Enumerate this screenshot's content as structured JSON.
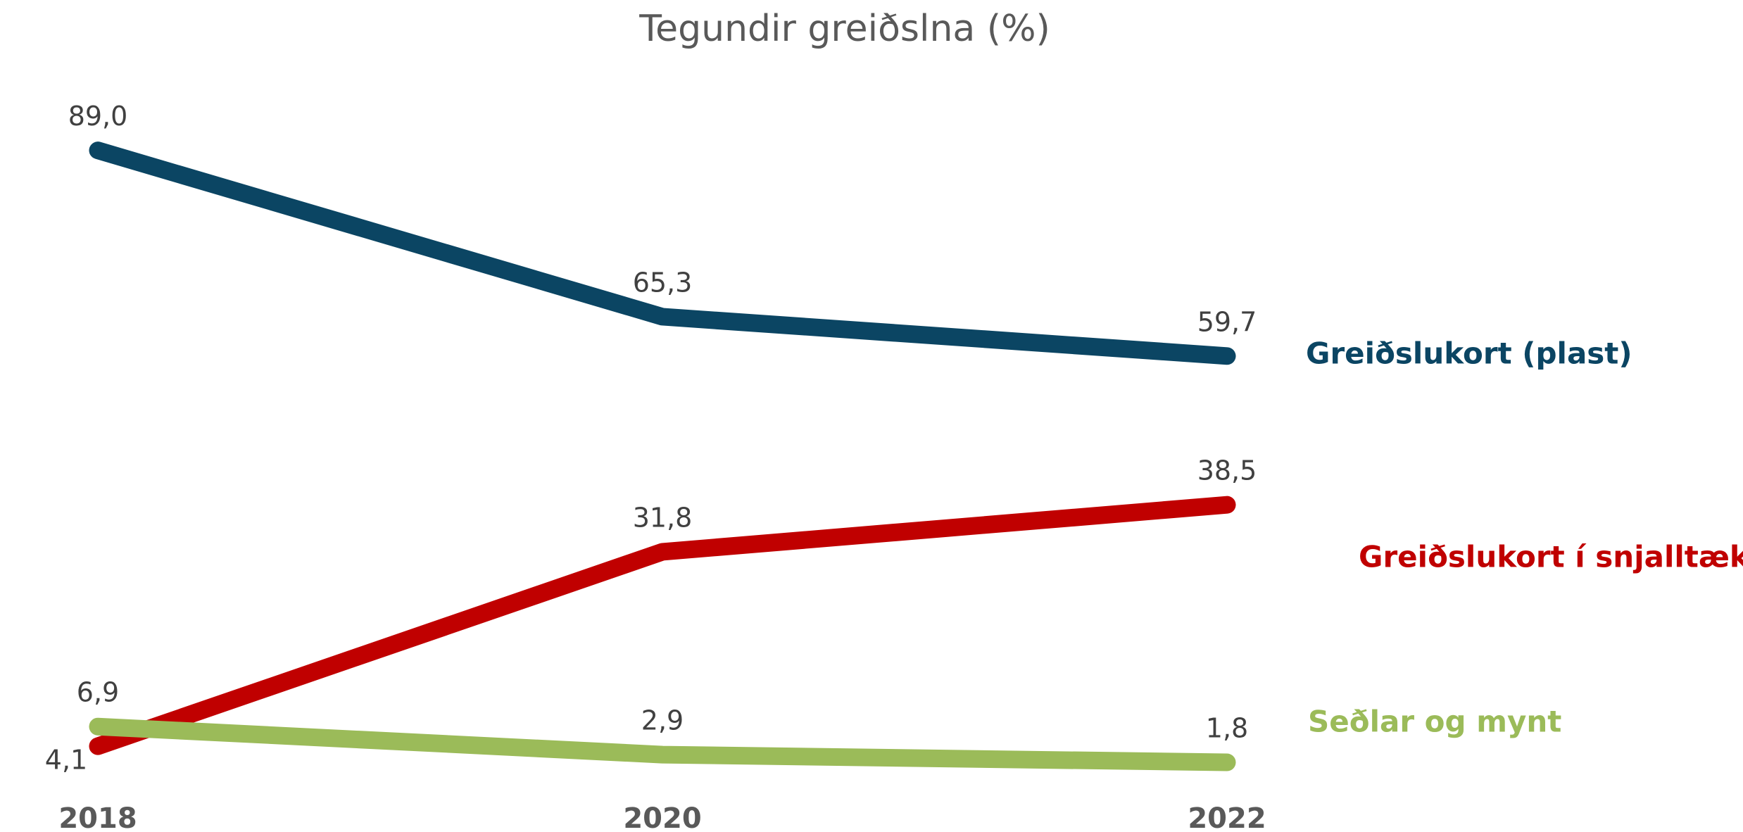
{
  "chart_data": {
    "type": "line",
    "title": "Tegundir greiðslna (%)",
    "categories": [
      "2018",
      "2020",
      "2022"
    ],
    "ylim": [
      0,
      100
    ],
    "series": [
      {
        "name": "Greiðslukort (plast)",
        "color": "#0b4563",
        "values": [
          89.0,
          65.3,
          59.7
        ],
        "value_labels": [
          "89,0",
          "65,3",
          "59,7"
        ]
      },
      {
        "name": "Greiðslukort í snjalltæki",
        "color": "#c00000",
        "values": [
          4.1,
          31.8,
          38.5
        ],
        "value_labels": [
          "4,1",
          "31,8",
          "38,5"
        ]
      },
      {
        "name": "Seðlar og mynt",
        "color": "#9bbb59",
        "values": [
          6.9,
          2.9,
          1.8
        ],
        "value_labels": [
          "6,9",
          "2,9",
          "1,8"
        ]
      }
    ]
  }
}
